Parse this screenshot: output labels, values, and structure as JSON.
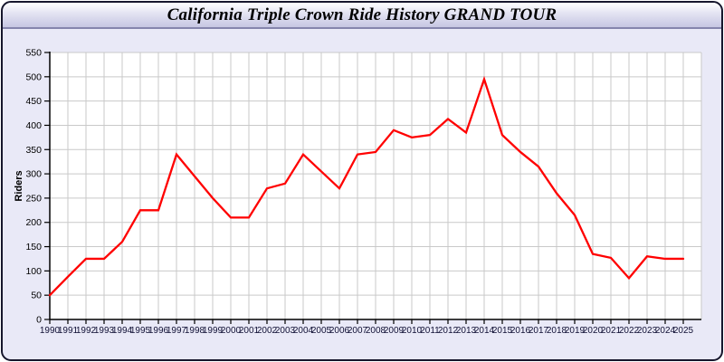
{
  "header": {
    "title": "California Triple Crown Ride History GRAND TOUR"
  },
  "colors": {
    "line": "#ff0000",
    "plot_bg": "#ffffff",
    "grid": "#c9c9c9",
    "axis": "#000000",
    "x_label": "#101035",
    "y_label": "#000000",
    "body_bg": "#e9e9f7",
    "frame_border": "#16162c"
  },
  "chart_data": {
    "type": "line",
    "title": "California Triple Crown Ride History GRAND TOUR",
    "xlabel": "",
    "ylabel": "Riders",
    "categories": [
      "1990",
      "1991",
      "1992",
      "1993",
      "1994",
      "1995",
      "1996",
      "1997",
      "1998",
      "1999",
      "2000",
      "2001",
      "2002",
      "2003",
      "2004",
      "2005",
      "2006",
      "2007",
      "2008",
      "2009",
      "2010",
      "2011",
      "2012",
      "2013",
      "2014",
      "2015",
      "2016",
      "2017",
      "2018",
      "2019",
      "2020",
      "2021",
      "2022",
      "2023",
      "2024",
      "2025"
    ],
    "series": [
      {
        "name": "Riders",
        "color": "#ff0000",
        "values": [
          50,
          88,
          125,
          125,
          160,
          225,
          225,
          340,
          295,
          250,
          210,
          210,
          270,
          280,
          340,
          305,
          270,
          340,
          345,
          390,
          375,
          380,
          413,
          385,
          495,
          380,
          345,
          315,
          260,
          215,
          135,
          127,
          85,
          130,
          125,
          125
        ]
      }
    ],
    "ylim": [
      0,
      550
    ],
    "ytick_step": 50,
    "grid": true,
    "legend": false
  }
}
